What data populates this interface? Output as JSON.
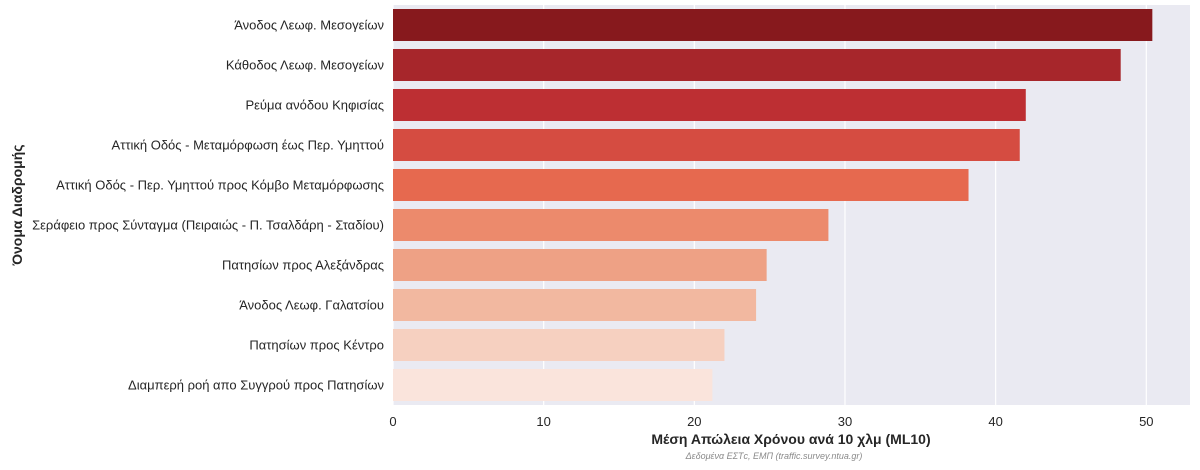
{
  "chart_data": {
    "type": "bar",
    "orientation": "horizontal",
    "xlabel": "Μέση Απώλεια Χρόνου ανά 10 χλμ (ML10)",
    "ylabel": "Όνομα Διαδρομής",
    "caption": "Δεδομένα ΕΣΤc, ΕΜΠ (traffic.survey.ntua.gr)",
    "xlim": [
      0,
      52.9
    ],
    "xticks": [
      0,
      10,
      20,
      30,
      40,
      50
    ],
    "grid": true,
    "background": "#eaeaf2",
    "categories": [
      "Άνοδος Λεωφ. Μεσογείων",
      "Κάθοδος Λεωφ. Μεσογείων",
      "Ρεύμα ανόδου Κηφισίας",
      "Αττική Οδός - Μεταμόρφωση έως Περ. Υμηττού",
      "Αττική Οδός - Περ. Υμηττού προς Κόμβο Μεταμόρφωσης",
      "Σεράφειο προς Σύνταγμα (Πειραιώς - Π. Τσαλδάρη - Σταδίου)",
      "Πατησίων προς Αλεξάνδρας",
      "Άνοδος Λεωφ. Γαλατσίου",
      "Πατησίων προς Κέντρο",
      "Διαμπερή ροή απο Συγγρού προς Πατησίων"
    ],
    "values": [
      50.4,
      48.3,
      42.0,
      41.6,
      38.2,
      28.9,
      24.8,
      24.1,
      22.0,
      21.2
    ],
    "colors": [
      "#87191d",
      "#a7262b",
      "#bd2f33",
      "#d54c41",
      "#e6694f",
      "#ec8a6c",
      "#eea185",
      "#f2b8a0",
      "#f6d0c0",
      "#fae4dc"
    ]
  }
}
